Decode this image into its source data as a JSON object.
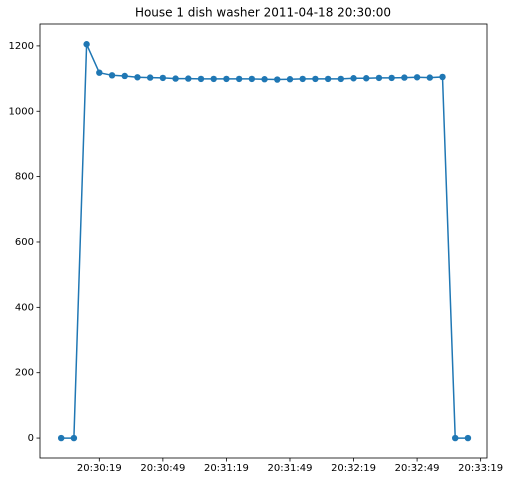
{
  "chart_data": {
    "type": "line",
    "title": "House 1 dish washer 2011-04-18 20:30:00",
    "x": [
      "20:30:01",
      "20:30:07",
      "20:30:13",
      "20:30:19",
      "20:30:25",
      "20:30:31",
      "20:30:37",
      "20:30:43",
      "20:30:49",
      "20:30:55",
      "20:31:01",
      "20:31:07",
      "20:31:13",
      "20:31:19",
      "20:31:25",
      "20:31:31",
      "20:31:37",
      "20:31:43",
      "20:31:49",
      "20:31:55",
      "20:32:01",
      "20:32:07",
      "20:32:13",
      "20:32:19",
      "20:32:25",
      "20:32:31",
      "20:32:37",
      "20:32:43",
      "20:32:49",
      "20:32:55",
      "20:33:01",
      "20:33:07",
      "20:33:13"
    ],
    "series": [
      {
        "color": "#1f77b4",
        "values": [
          0,
          0,
          1205,
          1118,
          1110,
          1108,
          1104,
          1103,
          1102,
          1100,
          1100,
          1099,
          1099,
          1099,
          1099,
          1099,
          1098,
          1097,
          1098,
          1099,
          1099,
          1099,
          1099,
          1101,
          1101,
          1102,
          1102,
          1103,
          1104,
          1103,
          1105,
          0,
          0
        ]
      }
    ],
    "xlim": [
      "20:29:51",
      "20:33:22"
    ],
    "xticks": [
      "20:30:19",
      "20:30:49",
      "20:31:19",
      "20:31:49",
      "20:32:19",
      "20:32:49",
      "20:33:19"
    ],
    "ylim": [
      -61,
      1267
    ],
    "yticks": [
      0,
      200,
      400,
      600,
      800,
      1000,
      1200
    ]
  }
}
